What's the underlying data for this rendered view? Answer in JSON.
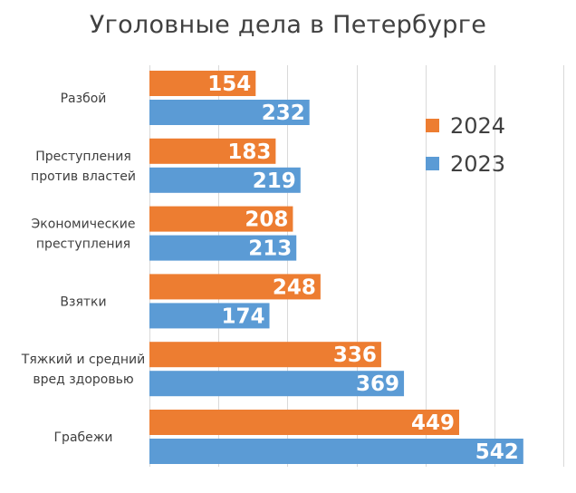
{
  "chart_data": {
    "type": "bar",
    "orientation": "horizontal",
    "title": "Уголовные дела в Петербурге",
    "xlabel": "",
    "ylabel": "",
    "xlim": [
      0,
      600
    ],
    "grid": true,
    "legend_position": "right",
    "categories": [
      [
        "Разбой"
      ],
      [
        "Преступления",
        "против властей"
      ],
      [
        "Экономические",
        "преступления"
      ],
      [
        "Взятки"
      ],
      [
        "Тяжкий и средний",
        "вред здоровью"
      ],
      [
        "Грабежи"
      ]
    ],
    "series": [
      {
        "name": "2024",
        "color": "#ED7D31",
        "values": [
          154,
          183,
          208,
          248,
          336,
          449
        ]
      },
      {
        "name": "2023",
        "color": "#5B9BD5",
        "values": [
          232,
          219,
          213,
          174,
          369,
          542
        ]
      }
    ],
    "data_labels": true
  }
}
